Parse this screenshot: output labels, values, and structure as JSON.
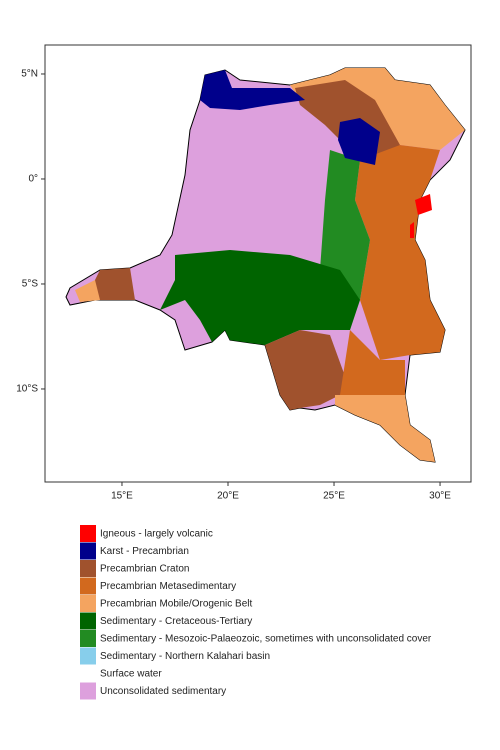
{
  "map": {
    "xlim": [
      11.37,
      31.46
    ],
    "ylim": [
      -14.43,
      6.38
    ],
    "xticks": [
      {
        "value": 15,
        "label": "15°E"
      },
      {
        "value": 20,
        "label": "20°E"
      },
      {
        "value": 25,
        "label": "25°E"
      },
      {
        "value": 30,
        "label": "30°E"
      }
    ],
    "yticks": [
      {
        "value": 5,
        "label": "5°N"
      },
      {
        "value": 0,
        "label": "0°"
      },
      {
        "value": -5,
        "label": "5°S"
      },
      {
        "value": -10,
        "label": "10°S"
      }
    ],
    "legend": [
      {
        "name": "Igneous - largely volcanic",
        "color": "#ff0000"
      },
      {
        "name": "Karst - Precambrian",
        "color": "#00008b"
      },
      {
        "name": "Precambrian Craton",
        "color": "#a0522d"
      },
      {
        "name": "Precambrian Metasedimentary",
        "color": "#d2691e"
      },
      {
        "name": "Precambrian Mobile/Orogenic Belt",
        "color": "#f4a460"
      },
      {
        "name": "Sedimentary - Cretaceous-Tertiary",
        "color": "#006400"
      },
      {
        "name": "Sedimentary - Mesozoic-Palaeozoic, sometimes with unconsolidated cover",
        "color": "#228b22"
      },
      {
        "name": "Sedimentary - Northern Kalahari basin",
        "color": "#87ceeb"
      },
      {
        "name": "Surface water",
        "color": "#ffffff"
      },
      {
        "name": "Unconsolidated sedimentary",
        "color": "#dda0dd"
      }
    ]
  }
}
